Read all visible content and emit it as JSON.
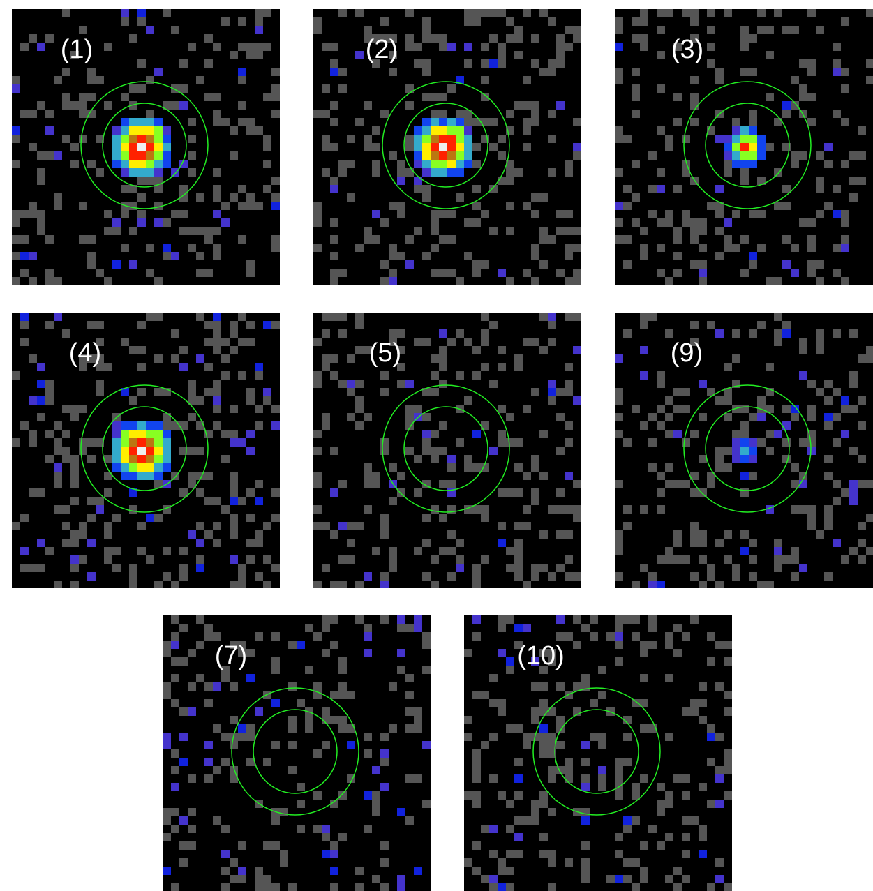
{
  "panels": [
    {
      "label": "(1)"
    },
    {
      "label": "(2)"
    },
    {
      "label": "(3)"
    },
    {
      "label": "(4)"
    },
    {
      "label": "(5)"
    },
    {
      "label": "(9)"
    },
    {
      "label": "(7)"
    },
    {
      "label": "(10)"
    }
  ]
}
